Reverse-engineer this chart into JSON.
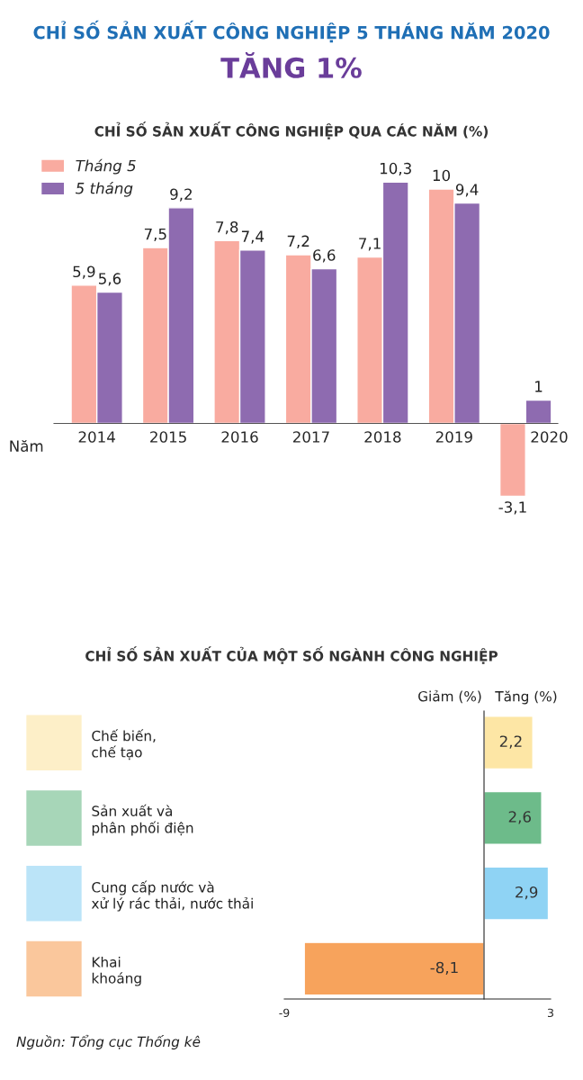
{
  "chart_data": [
    {
      "type": "bar",
      "title": "CHỈ SỐ SẢN XUẤT CÔNG NGHIỆP 5 THÁNG NĂM 2020",
      "subtitle": "TĂNG 1%",
      "annotations": [
        "CHỈ SỐ SẢN XUẤT CÔNG NGHIỆP QUA CÁC NĂM (%)"
      ],
      "xlabel": "Năm",
      "categories": [
        "2014",
        "2015",
        "2016",
        "2017",
        "2018",
        "2019",
        "2020"
      ],
      "series": [
        {
          "name": "Tháng 5",
          "color": "#f9aba0",
          "values": [
            5.9,
            7.5,
            7.8,
            7.2,
            7.1,
            10,
            -3.1
          ],
          "value_labels": [
            "5,9",
            "7,5",
            "7,8",
            "7,2",
            "7,1",
            "10",
            "-3,1"
          ]
        },
        {
          "name": "5 tháng",
          "color": "#8e6bb0",
          "values": [
            5.6,
            9.2,
            7.4,
            6.6,
            10.3,
            9.4,
            1
          ],
          "value_labels": [
            "5,6",
            "9,2",
            "7,4",
            "6,6",
            "10,3",
            "9,4",
            "1"
          ]
        }
      ],
      "tick_labels": "x",
      "legend": "top left",
      "grid": false
    },
    {
      "type": "bar",
      "orientation": "horizontal",
      "title": "CHỈ SỐ SẢN XUẤT CỦA MỘT SỐ NGÀNH CÔNG NGHIỆP",
      "categories": [
        "Chế biến,\nchế tạo",
        "Sản xuất và\nphân phối điện",
        "Cung cấp nước và\nxử lý rác thải, nước thải",
        "Khai\nkhoáng"
      ],
      "values": [
        2.2,
        2.6,
        2.9,
        -8.1
      ],
      "value_labels": [
        "2,2",
        "2,6",
        "2,9",
        "-8,1"
      ],
      "colors": [
        "#fde6a5",
        "#6dbb8a",
        "#8fd3f4",
        "#f7a35c"
      ],
      "xlim": [
        -9,
        3
      ],
      "xticks": [
        -9,
        3
      ],
      "grid": false,
      "annotations": [
        "Giảm (%)",
        "Tăng (%)",
        "Nguồn: Tổng cục Thống kê"
      ]
    }
  ]
}
